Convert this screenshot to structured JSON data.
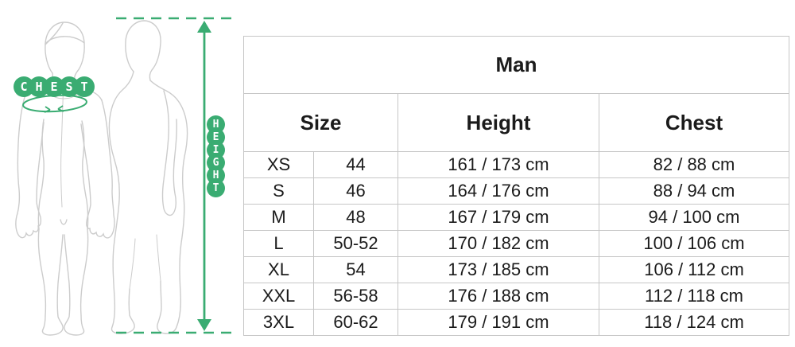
{
  "colors": {
    "accent_green": "#3aac72",
    "figure_outline": "#cccccc",
    "table_border": "#c6c6c6",
    "text": "#1b1b1b"
  },
  "illustration": {
    "chest_label": "CHEST",
    "height_label": "HEIGHT"
  },
  "size_chart": {
    "title": "Man",
    "headers": {
      "size": "Size",
      "height": "Height",
      "chest": "Chest"
    },
    "rows": [
      {
        "size": "XS",
        "eu": "44",
        "height": "161 / 173 cm",
        "chest": "82 / 88 cm"
      },
      {
        "size": "S",
        "eu": "46",
        "height": "164 / 176 cm",
        "chest": "88 / 94 cm"
      },
      {
        "size": "M",
        "eu": "48",
        "height": "167 / 179 cm",
        "chest": "94 / 100 cm"
      },
      {
        "size": "L",
        "eu": "50-52",
        "height": "170 / 182 cm",
        "chest": "100 / 106 cm"
      },
      {
        "size": "XL",
        "eu": "54",
        "height": "173 / 185 cm",
        "chest": "106 / 112 cm"
      },
      {
        "size": "XXL",
        "eu": "56-58",
        "height": "176 / 188 cm",
        "chest": "112 / 118 cm"
      },
      {
        "size": "3XL",
        "eu": "60-62",
        "height": "179 / 191 cm",
        "chest": "118 / 124 cm"
      }
    ]
  }
}
